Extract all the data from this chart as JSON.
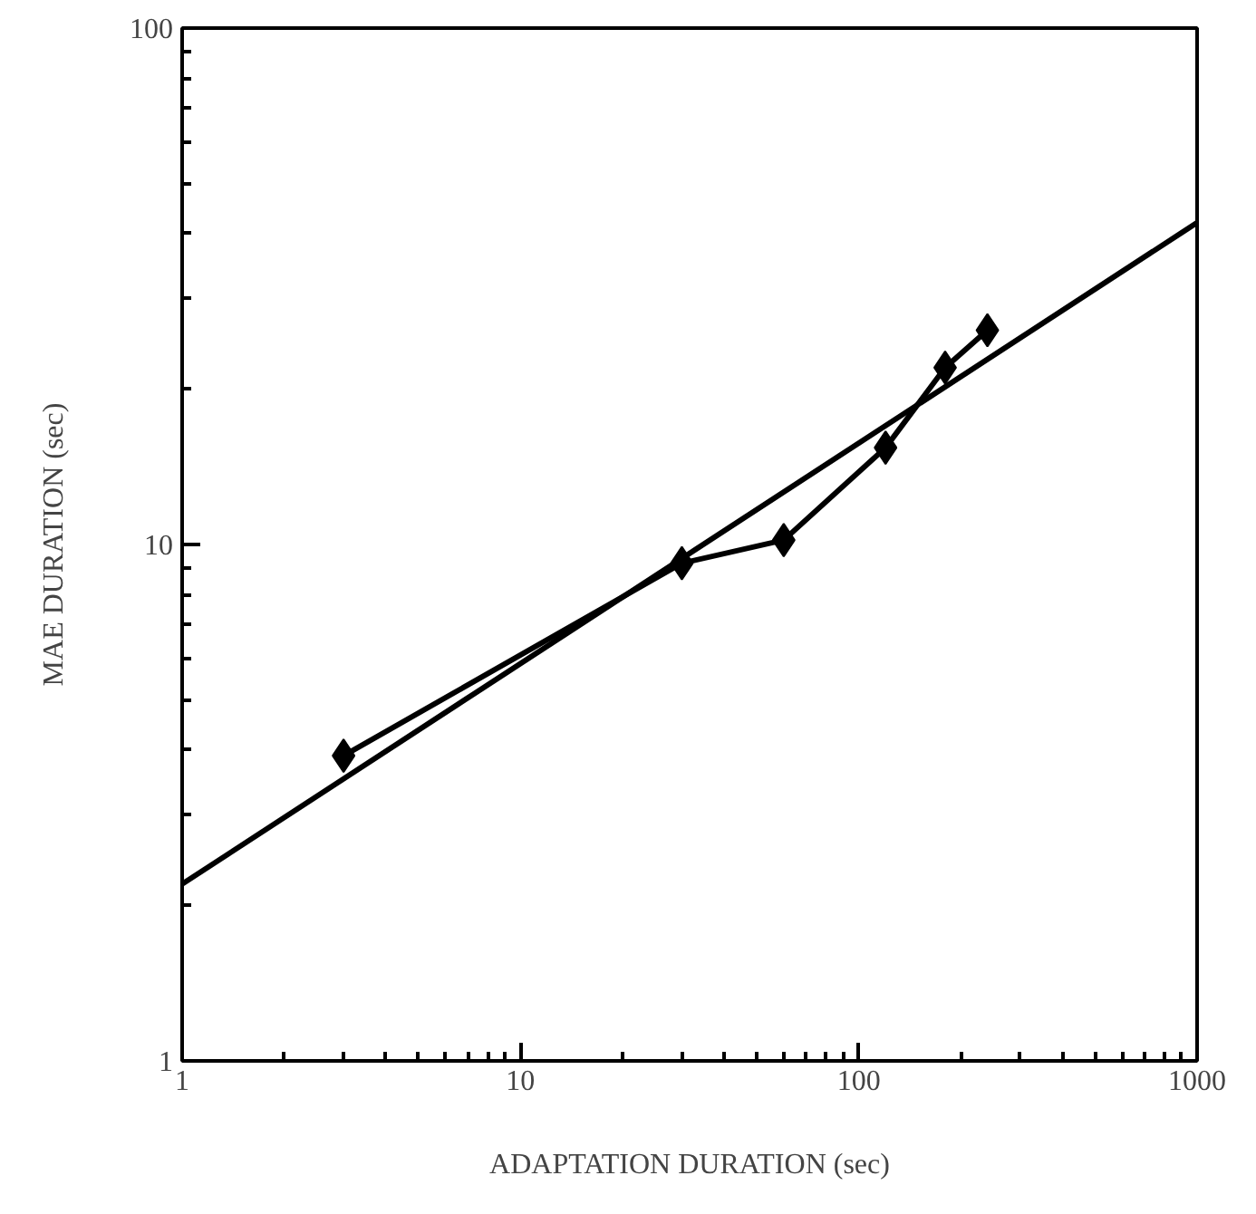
{
  "chart_data": {
    "type": "line",
    "xlabel": "ADAPTATION DURATION (sec)",
    "ylabel": "MAE DURATION (sec)",
    "log": "xy",
    "xlim": [
      1,
      1000
    ],
    "ylim": [
      1,
      100
    ],
    "xticks": [
      1,
      10,
      100,
      1000
    ],
    "yticks": [
      1,
      10,
      100
    ],
    "grid": false,
    "series": [
      {
        "color": "#000000",
        "marker": "diamond",
        "x": [
          3,
          30,
          60,
          120,
          180,
          240
        ],
        "values": [
          3.9,
          9.2,
          10.2,
          15.4,
          22,
          26
        ]
      },
      {
        "color": "#000000",
        "marker": "none",
        "x": [
          1,
          1000
        ],
        "values": [
          2.2,
          42
        ]
      }
    ]
  }
}
